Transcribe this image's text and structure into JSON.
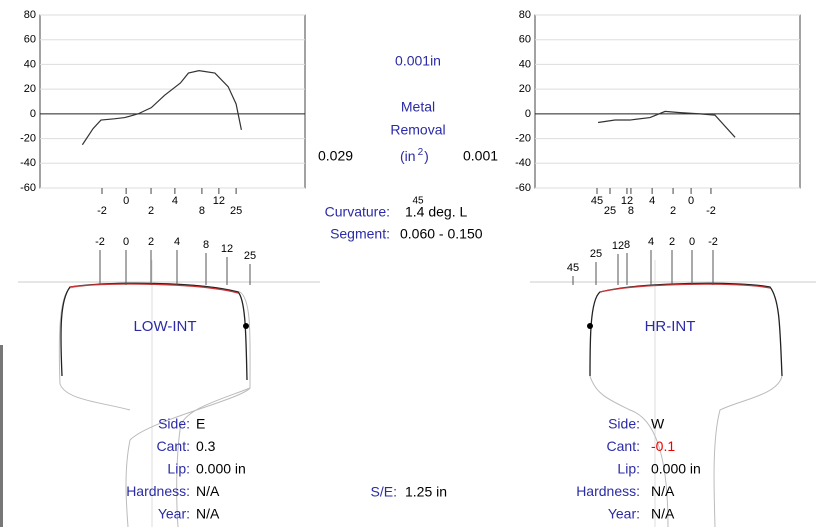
{
  "chart_data": [
    {
      "type": "line",
      "ylim": [
        -60,
        80
      ],
      "yticks": [
        80,
        60,
        40,
        20,
        0,
        -20,
        -40,
        -60
      ],
      "xlim": [
        0,
        100
      ],
      "xticks": [
        {
          "value": 23.4,
          "label": "-2"
        },
        {
          "value": 32.5,
          "label": "0"
        },
        {
          "value": 41.9,
          "label": "2"
        },
        {
          "value": 50.9,
          "label": "4"
        },
        {
          "value": 61.1,
          "label": "8"
        },
        {
          "value": 67.5,
          "label": "12"
        },
        {
          "value": 74.0,
          "label": "25"
        }
      ],
      "grid": true,
      "color": "#333333",
      "x": [
        16,
        20,
        23,
        28,
        32,
        37,
        42,
        47,
        53,
        56,
        60,
        66,
        71,
        74,
        76
      ],
      "values": [
        -25,
        -12,
        -5,
        -4,
        -3,
        0,
        5,
        15,
        25,
        33,
        35,
        33,
        22,
        8,
        -13
      ]
    },
    {
      "type": "line",
      "ylim": [
        -60,
        80
      ],
      "yticks": [
        80,
        60,
        40,
        20,
        0,
        -20,
        -40,
        -60
      ],
      "xlim": [
        0,
        100
      ],
      "xticks": [
        {
          "value": 23.4,
          "label": "45"
        },
        {
          "value": 28.3,
          "label": "25"
        },
        {
          "value": 34.7,
          "label": "12"
        },
        {
          "value": 36.2,
          "label": "8"
        },
        {
          "value": 44.2,
          "label": "4"
        },
        {
          "value": 52.1,
          "label": "2"
        },
        {
          "value": 58.9,
          "label": "0"
        },
        {
          "value": 66.4,
          "label": "-2"
        }
      ],
      "grid": true,
      "color": "#333333",
      "x": [
        23.8,
        30.2,
        35.8,
        43.4,
        49.1,
        54.7,
        62.3,
        67.9,
        75.5
      ],
      "values": [
        -7,
        -5,
        -5,
        -3,
        2,
        1,
        0,
        -1,
        -19
      ]
    }
  ],
  "center": {
    "depth": "0.001in",
    "metal": "Metal",
    "removal": "Removal",
    "unit": "(in",
    "unit_sup": "2",
    "unit_close": ")",
    "left_area": "0.029",
    "right_area": "0.001",
    "angle": "45",
    "curvature_label": "Curvature:",
    "curvature": "1.4 deg. L",
    "segment_label": "Segment:",
    "segment": "0.060 - 0.150",
    "se_label": "S/E:",
    "se": "1.25 in"
  },
  "profiles": [
    {
      "name": "LOW-INT",
      "labels": [
        "-2",
        "0",
        "2",
        "4",
        "8",
        "12",
        "25"
      ],
      "info": [
        [
          "Side:",
          "E"
        ],
        [
          "Cant:",
          "0.3"
        ],
        [
          "Lip:",
          "0.000 in"
        ],
        [
          "Hardness:",
          "N/A"
        ],
        [
          "Year:",
          "N/A"
        ]
      ]
    },
    {
      "name": "HR-INT",
      "labels": [
        "45",
        "25",
        "12",
        "8",
        "4",
        "2",
        "0",
        "-2"
      ],
      "info": [
        [
          "Side:",
          "W"
        ],
        [
          "Cant:",
          "-0.1"
        ],
        [
          "Lip:",
          "0.000 in"
        ],
        [
          "Hardness:",
          "N/A"
        ],
        [
          "Year:",
          "N/A"
        ]
      ]
    }
  ]
}
